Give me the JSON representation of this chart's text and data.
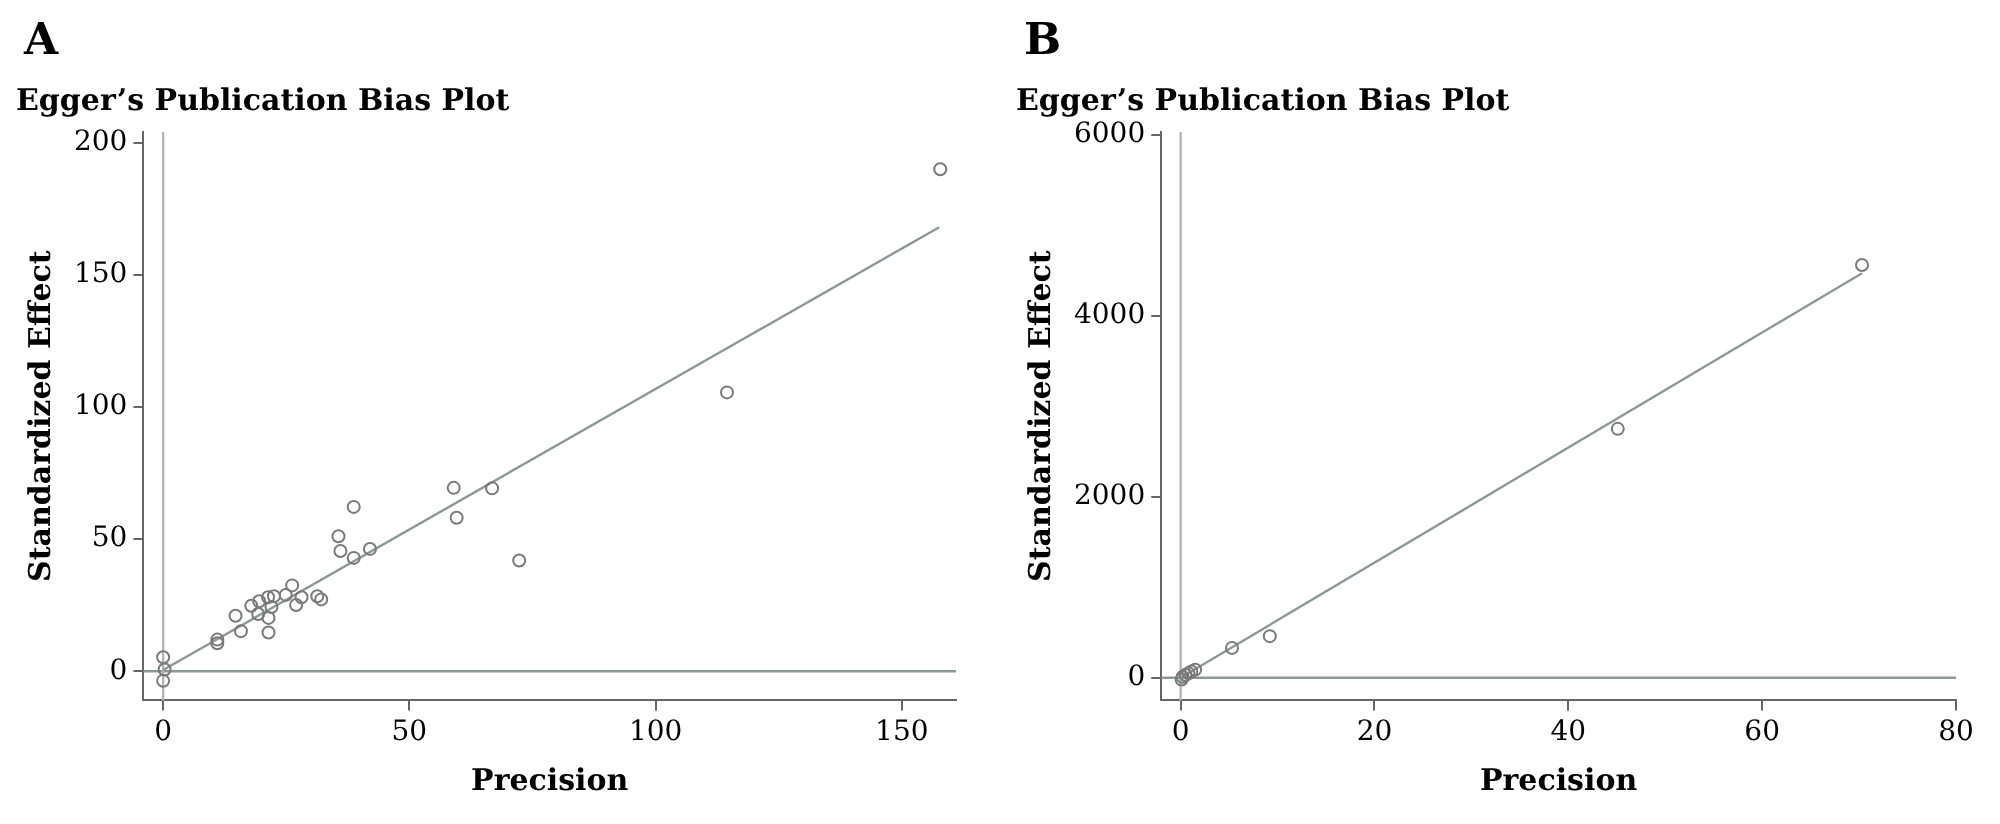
{
  "chart_data": [
    {
      "type": "scatter",
      "title": "Egger’s Publication Bias Plot",
      "xlabel": "Precision",
      "ylabel": "Standardized Effect",
      "annotations": [
        "A"
      ],
      "xlim": [
        -4,
        161
      ],
      "ylim": [
        -11,
        204
      ],
      "xticks": [
        0,
        50,
        100,
        150
      ],
      "yticks": [
        0,
        50,
        100,
        150,
        200
      ],
      "grid": false,
      "legend": false,
      "marker": "circle",
      "ref_lines": [
        {
          "axis": "y",
          "value": 0,
          "color": "#8a9a90"
        },
        {
          "axis": "x",
          "value": 0,
          "color": "#b0b8b4"
        }
      ],
      "series": [
        {
          "type": "scatter",
          "color": "#7a7a7a",
          "x": [
            157.8,
            114.5,
            59.0,
            66.8,
            59.6,
            72.3,
            38.7,
            35.6,
            36.0,
            38.7,
            42.0,
            26.2,
            24.9,
            28.1,
            31.3,
            32.1,
            27.0,
            22.5,
            21.3,
            19.5,
            17.9,
            22.0,
            19.3,
            21.4,
            14.7,
            15.8,
            21.4,
            11.0,
            11.0,
            0,
            0.3,
            0
          ],
          "values": [
            189.9,
            105.5,
            69.4,
            69.2,
            58.1,
            41.9,
            62.2,
            51.1,
            45.5,
            42.9,
            46.3,
            32.5,
            28.9,
            28.0,
            28.4,
            27.2,
            25.1,
            28.4,
            28.0,
            26.5,
            24.8,
            24.3,
            21.7,
            20.2,
            21.0,
            15.2,
            14.7,
            12.0,
            10.6,
            5.3,
            0.7,
            -3.6
          ]
        },
        {
          "type": "line",
          "color": "#8a9a90",
          "marker": "none",
          "x": [
            0,
            157.6
          ],
          "values": [
            0.5,
            168
          ]
        }
      ]
    },
    {
      "type": "scatter",
      "title": "Egger’s Publication Bias Plot",
      "xlabel": "Precision",
      "ylabel": "Standardized Effect",
      "annotations": [
        "B"
      ],
      "xlim": [
        -2,
        80
      ],
      "ylim": [
        -250,
        6030
      ],
      "xticks": [
        0,
        20,
        40,
        60,
        80
      ],
      "yticks": [
        0,
        2000,
        4000,
        6000
      ],
      "grid": false,
      "legend": false,
      "marker": "circle",
      "ref_lines": [
        {
          "axis": "y",
          "value": 0,
          "color": "#8a9a90"
        },
        {
          "axis": "x",
          "value": 0,
          "color": "#b0b8b4"
        }
      ],
      "series": [
        {
          "type": "scatter",
          "color": "#7a7a7a",
          "x": [
            70.3,
            45.1,
            9.2,
            5.3,
            1.5,
            1.1,
            0.8,
            0.5,
            0.2,
            0.1
          ],
          "values": [
            4560,
            2750,
            460,
            330,
            90,
            70,
            50,
            30,
            10,
            -20
          ]
        },
        {
          "type": "line",
          "color": "#8a9a90",
          "marker": "none",
          "x": [
            0,
            70.3
          ],
          "values": [
            0,
            4470
          ]
        }
      ]
    }
  ]
}
